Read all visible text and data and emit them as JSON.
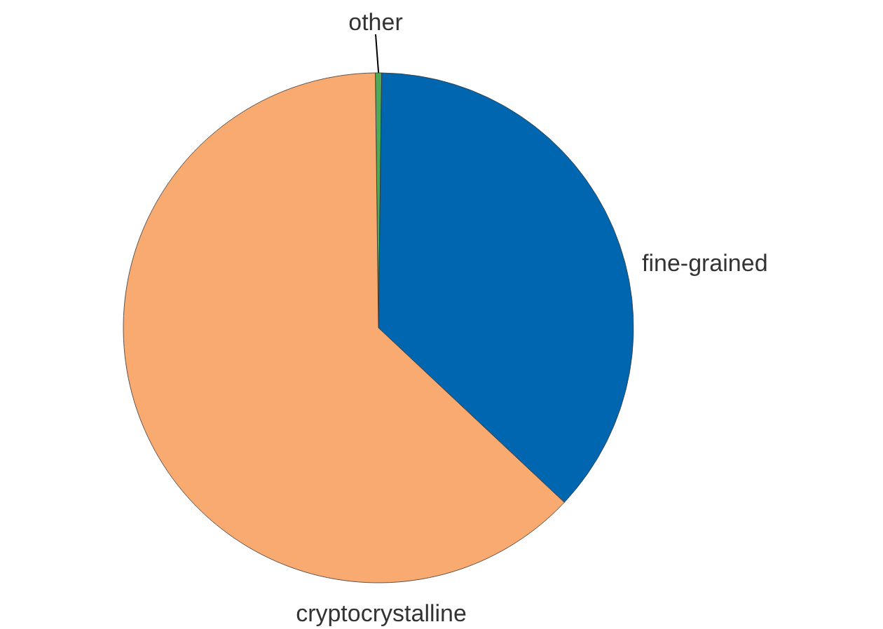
{
  "chart_data": {
    "type": "pie",
    "categories": [
      "other",
      "fine-grained",
      "cryptocrystalline"
    ],
    "values": [
      0.4,
      36.8,
      62.8
    ],
    "colors": [
      "#4daa57",
      "#0066b0",
      "#f8aa70"
    ],
    "legend": false
  }
}
